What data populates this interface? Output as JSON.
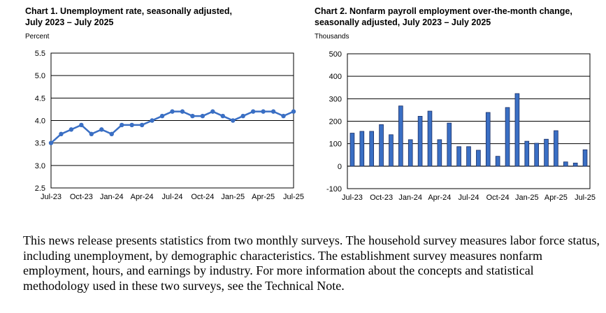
{
  "chart_data": [
    {
      "type": "line",
      "title_line1": "Chart 1. Unemployment rate, seasonally adjusted,",
      "title_line2": "July 2023 – July 2025",
      "unit": "Percent",
      "categories": [
        "Jul-23",
        "Aug-23",
        "Sep-23",
        "Oct-23",
        "Nov-23",
        "Dec-23",
        "Jan-24",
        "Feb-24",
        "Mar-24",
        "Apr-24",
        "May-24",
        "Jun-24",
        "Jul-24",
        "Aug-24",
        "Sep-24",
        "Oct-24",
        "Nov-24",
        "Dec-24",
        "Jan-25",
        "Feb-25",
        "Mar-25",
        "Apr-25",
        "May-25",
        "Jun-25",
        "Jul-25"
      ],
      "values": [
        3.5,
        3.7,
        3.8,
        3.9,
        3.7,
        3.8,
        3.7,
        3.9,
        3.9,
        3.9,
        4.0,
        4.1,
        4.2,
        4.2,
        4.1,
        4.1,
        4.2,
        4.1,
        4.0,
        4.1,
        4.2,
        4.2,
        4.2,
        4.1,
        4.2
      ],
      "x_tick_labels": [
        "Jul-23",
        "Oct-23",
        "Jan-24",
        "Apr-24",
        "Jul-24",
        "Oct-24",
        "Jan-25",
        "Apr-25",
        "Jul-25"
      ],
      "y_ticks": [
        "2.5",
        "3.0",
        "3.5",
        "4.0",
        "4.5",
        "5.0",
        "5.5"
      ],
      "ylim": [
        2.5,
        5.5
      ],
      "grid": true,
      "color": "#3a6fc4"
    },
    {
      "type": "bar",
      "title_line1": "Chart 2. Nonfarm payroll employment over-the-month change,",
      "title_line2": "seasonally adjusted, July 2023 – July 2025",
      "unit": "Thousands",
      "categories": [
        "Jul-23",
        "Aug-23",
        "Sep-23",
        "Oct-23",
        "Nov-23",
        "Dec-23",
        "Jan-24",
        "Feb-24",
        "Mar-24",
        "Apr-24",
        "May-24",
        "Jun-24",
        "Jul-24",
        "Aug-24",
        "Sep-24",
        "Oct-24",
        "Nov-24",
        "Dec-24",
        "Jan-25",
        "Feb-25",
        "Mar-25",
        "Apr-25",
        "May-25",
        "Jun-25",
        "Jul-25"
      ],
      "values": [
        147,
        155,
        155,
        185,
        140,
        268,
        118,
        222,
        245,
        118,
        192,
        87,
        87,
        71,
        239,
        44,
        261,
        323,
        111,
        102,
        120,
        158,
        19,
        14,
        73
      ],
      "x_tick_labels": [
        "Jul-23",
        "Oct-23",
        "Jan-24",
        "Apr-24",
        "Jul-24",
        "Oct-24",
        "Jan-25",
        "Apr-25",
        "Jul-25"
      ],
      "y_ticks": [
        "-100",
        "0",
        "100",
        "200",
        "300",
        "400",
        "500"
      ],
      "ylim": [
        -100,
        500
      ],
      "grid": true,
      "color": "#3a6fc4"
    }
  ],
  "paragraph": "This news release presents statistics from two monthly surveys. The household survey measures labor force status, including unemployment, by demographic characteristics. The establishment survey measures nonfarm employment, hours, and earnings by industry. For more information about the concepts and statistical methodology used in these two surveys, see the Technical Note."
}
